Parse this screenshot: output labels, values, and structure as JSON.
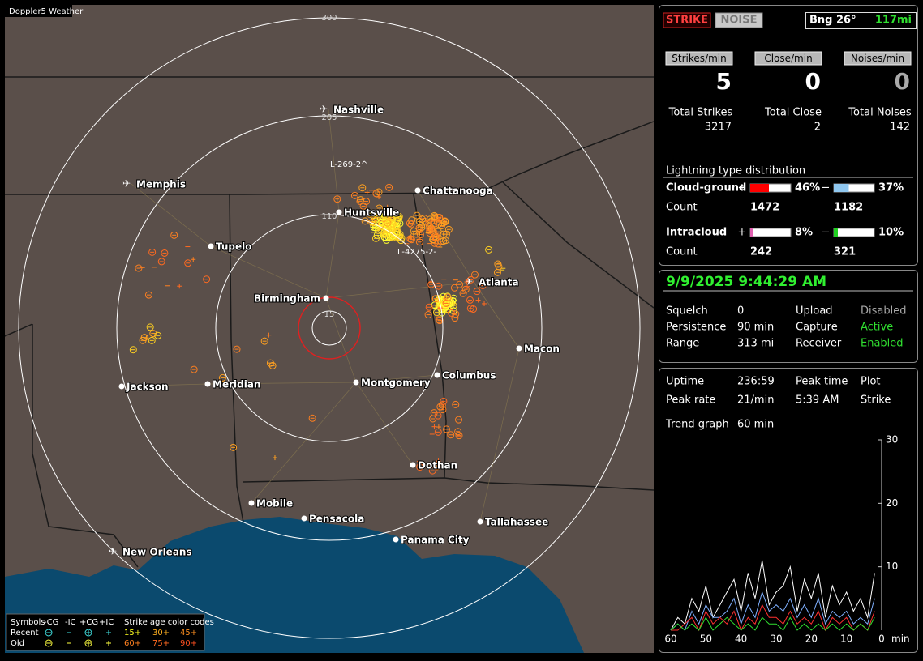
{
  "map": {
    "title": "Doppler5 Weather",
    "ring_labels": [
      300,
      205,
      110,
      15
    ],
    "cities": [
      "Nashville",
      "Memphis",
      "Chattanooga",
      "Huntsville",
      "Tupelo",
      "Atlanta",
      "Birmingham",
      "Macon",
      "Jackson",
      "Meridian",
      "Montgomery",
      "Columbus",
      "Dothan",
      "Mobile",
      "Pensacola",
      "Tallahassee",
      "Panama City",
      "New Orleans"
    ],
    "annotations": [
      "L-269-2^",
      "L-4275-2-"
    ],
    "legend": {
      "symbols_label": "Symbols",
      "symbols": [
        "-CG",
        "-IC",
        "+CG",
        "+IC"
      ],
      "age_label": "Strike age color codes",
      "rows": [
        {
          "name": "Recent",
          "ages": [
            "15+",
            "30+",
            "45+"
          ]
        },
        {
          "name": "Old",
          "ages": [
            "60+",
            "75+",
            "90+"
          ]
        }
      ]
    }
  },
  "counters": {
    "mode_buttons": [
      "STRIKE",
      "NOISE"
    ],
    "bearing": "Bng 26°",
    "distance": "117mi",
    "rates": [
      {
        "label": "Strikes/min",
        "value": 5
      },
      {
        "label": "Close/min",
        "value": 0
      },
      {
        "label": "Noises/min",
        "value": 0
      }
    ],
    "totals": [
      {
        "label": "Total Strikes",
        "value": 3217
      },
      {
        "label": "Total Close",
        "value": 2
      },
      {
        "label": "Total Noises",
        "value": 142
      }
    ],
    "distribution": {
      "title": "Lightning type distribution",
      "count_label": "Count",
      "signs": [
        "+",
        "−"
      ],
      "types": [
        {
          "name": "Cloud-ground",
          "positive": {
            "value": 46,
            "label": "46%",
            "count": 1472
          },
          "negative": {
            "value": 37,
            "label": "37%",
            "count": 1182
          }
        },
        {
          "name": "Intracloud",
          "positive": {
            "value": 8,
            "label": "8%",
            "count": 242
          },
          "negative": {
            "value": 10,
            "label": "10%",
            "count": 321
          }
        }
      ]
    }
  },
  "status": {
    "datetime": "9/9/2025 9:44:29 AM",
    "settings": [
      {
        "label": "Squelch",
        "value": "0"
      },
      {
        "label": "Persistence",
        "value": "90 min"
      },
      {
        "label": "Range",
        "value": "313 mi"
      },
      {
        "label": "Upload",
        "value": "Disabled"
      },
      {
        "label": "Capture",
        "value": "Active"
      },
      {
        "label": "Receiver",
        "value": "Enabled"
      }
    ]
  },
  "stats": {
    "rows": [
      [
        "Uptime",
        "236:59",
        "Peak time",
        "Plot"
      ],
      [
        "Peak rate",
        "21/min",
        "5:39 AM",
        "Strike"
      ],
      [
        "Trend graph",
        "60 min"
      ]
    ]
  },
  "trend": {
    "type": "line",
    "xlim": [
      60,
      0
    ],
    "ylim": [
      0,
      30
    ],
    "yticks": [
      10,
      20,
      30
    ],
    "xticks": [
      60,
      50,
      40,
      30,
      20,
      10,
      0
    ],
    "x_unit": "min",
    "x": [
      60,
      58,
      56,
      54,
      52,
      50,
      48,
      46,
      44,
      42,
      40,
      38,
      36,
      34,
      32,
      30,
      28,
      26,
      24,
      22,
      20,
      18,
      16,
      14,
      12,
      10,
      8,
      6,
      4,
      2
    ],
    "series": [
      {
        "color": "#ffffff",
        "values": [
          0,
          2,
          1,
          5,
          3,
          7,
          2,
          4,
          6,
          8,
          3,
          9,
          5,
          11,
          4,
          6,
          7,
          10,
          3,
          8,
          5,
          9,
          2,
          7,
          4,
          6,
          3,
          5,
          2,
          9
        ]
      },
      {
        "color": "#7fb0ff",
        "values": [
          0,
          1,
          0,
          3,
          1,
          4,
          2,
          2,
          3,
          5,
          1,
          4,
          2,
          6,
          3,
          4,
          3,
          5,
          2,
          4,
          2,
          5,
          1,
          3,
          2,
          3,
          1,
          2,
          1,
          5
        ]
      },
      {
        "color": "#ff3030",
        "values": [
          0,
          0,
          1,
          2,
          0,
          3,
          1,
          2,
          1,
          3,
          0,
          2,
          1,
          4,
          2,
          2,
          1,
          3,
          1,
          2,
          1,
          3,
          0,
          2,
          1,
          2,
          0,
          1,
          0,
          3
        ]
      },
      {
        "color": "#30e030",
        "values": [
          0,
          1,
          0,
          1,
          0,
          2,
          0,
          1,
          2,
          1,
          0,
          1,
          0,
          2,
          1,
          1,
          0,
          2,
          0,
          1,
          0,
          1,
          0,
          1,
          0,
          1,
          0,
          1,
          0,
          2
        ]
      }
    ]
  }
}
